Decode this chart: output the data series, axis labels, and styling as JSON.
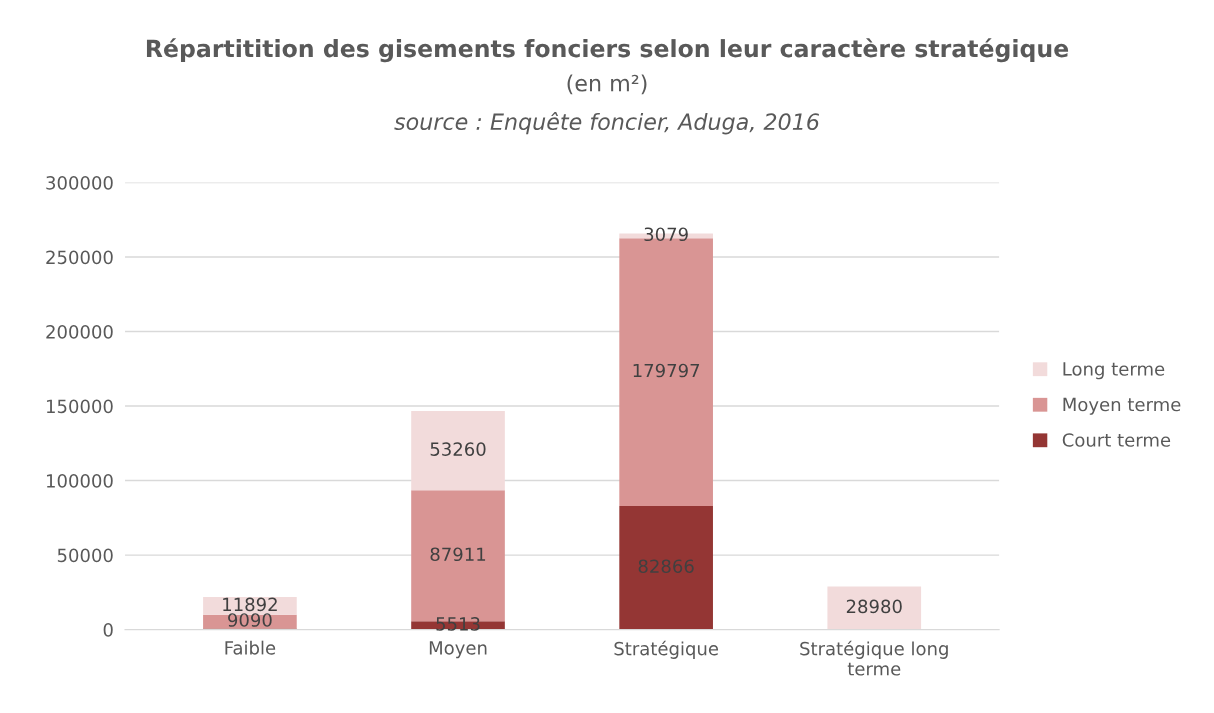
{
  "chart_data": {
    "type": "bar",
    "stacked": true,
    "title": "Répartitition des gisements fonciers selon leur caractère stratégique",
    "subtitle": "(en m²)",
    "annotations": [
      "source : Enquête foncier, Aduga, 2016"
    ],
    "categories": [
      "Faible",
      "Moyen",
      "Stratégique",
      "Stratégique long\nterme"
    ],
    "series": [
      {
        "name": "Court terme",
        "color": "#943634",
        "values": [
          800,
          5513,
          82866,
          null
        ],
        "value_labels": [
          null,
          "5513",
          "82866",
          null
        ]
      },
      {
        "name": "Moyen terme",
        "color": "#d99594",
        "values": [
          9090,
          87911,
          179797,
          null
        ],
        "value_labels": [
          "9090",
          "87911",
          "179797",
          null
        ]
      },
      {
        "name": "Long terme",
        "color": "#f2dbdb",
        "values": [
          11892,
          53260,
          3079,
          28980
        ],
        "value_labels": [
          "11892",
          "53260",
          "3079",
          "28980"
        ]
      }
    ],
    "ylim": [
      0,
      300000
    ],
    "yticks": [
      0,
      50000,
      100000,
      150000,
      200000,
      250000,
      300000
    ],
    "grid": "y",
    "legend": "right"
  }
}
